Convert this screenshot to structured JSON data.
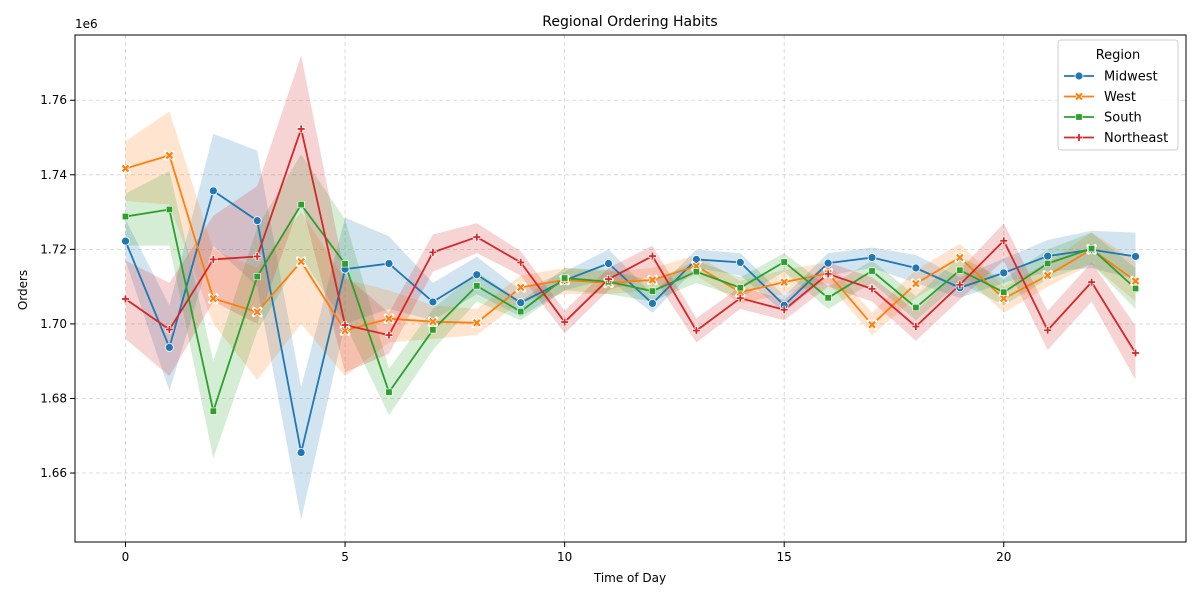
{
  "chart_data": {
    "type": "line",
    "title": "Regional Ordering Habits",
    "xlabel": "Time of Day",
    "ylabel": "Orders",
    "y_offset_label": "1e6",
    "x": [
      0,
      1,
      2,
      3,
      4,
      5,
      6,
      7,
      8,
      9,
      10,
      11,
      12,
      13,
      14,
      15,
      16,
      17,
      18,
      19,
      20,
      21,
      22,
      23
    ],
    "xlim": [
      -1.15,
      24.15
    ],
    "ylim": [
      1.6415,
      1.7775
    ],
    "x_ticks": [
      0,
      5,
      10,
      15,
      20
    ],
    "x_tick_labels": [
      "0",
      "5",
      "10",
      "15",
      "20"
    ],
    "y_ticks": [
      1.66,
      1.68,
      1.7,
      1.72,
      1.74,
      1.76
    ],
    "y_tick_labels": [
      "1.66",
      "1.68",
      "1.70",
      "1.72",
      "1.74",
      "1.76"
    ],
    "grid": true,
    "legend": {
      "title": "Region",
      "position": "top-right"
    },
    "series": [
      {
        "name": "Midwest",
        "color": "#1f77b4",
        "marker": "circle",
        "values": [
          1.7222,
          1.6937,
          1.7357,
          1.7277,
          1.6655,
          1.7147,
          1.7162,
          1.7059,
          1.7132,
          1.7057,
          1.7117,
          1.7162,
          1.7055,
          1.7173,
          1.7165,
          1.705,
          1.7163,
          1.7178,
          1.715,
          1.7097,
          1.7137,
          1.7182,
          1.7199,
          1.7181
        ],
        "ci_lower": [
          1.717,
          1.682,
          1.721,
          1.71,
          1.6475,
          1.7,
          1.704,
          1.701,
          1.708,
          1.702,
          1.709,
          1.712,
          1.703,
          1.715,
          1.713,
          1.703,
          1.713,
          1.715,
          1.711,
          1.707,
          1.711,
          1.714,
          1.715,
          1.712
        ],
        "ci_upper": [
          1.728,
          1.705,
          1.751,
          1.7465,
          1.683,
          1.7285,
          1.7235,
          1.711,
          1.718,
          1.709,
          1.714,
          1.72,
          1.708,
          1.72,
          1.719,
          1.7075,
          1.719,
          1.7205,
          1.7185,
          1.7125,
          1.7175,
          1.7225,
          1.725,
          1.7245
        ]
      },
      {
        "name": "West",
        "color": "#ff7f0e",
        "marker": "x",
        "values": [
          1.7417,
          1.7452,
          1.7068,
          1.7032,
          1.7167,
          1.6982,
          1.7014,
          1.7006,
          1.7003,
          1.7098,
          1.7118,
          1.711,
          1.7118,
          1.7155,
          1.7085,
          1.7112,
          1.7136,
          1.6998,
          1.7108,
          1.7178,
          1.7068,
          1.713,
          1.72,
          1.7115
        ],
        "ci_lower": [
          1.733,
          1.732,
          1.7,
          1.685,
          1.7,
          1.686,
          1.695,
          1.696,
          1.697,
          1.706,
          1.708,
          1.708,
          1.709,
          1.713,
          1.7055,
          1.708,
          1.711,
          1.697,
          1.707,
          1.714,
          1.703,
          1.71,
          1.716,
          1.706
        ],
        "ci_upper": [
          1.749,
          1.757,
          1.72,
          1.715,
          1.73,
          1.712,
          1.709,
          1.705,
          1.704,
          1.713,
          1.715,
          1.714,
          1.715,
          1.7185,
          1.7115,
          1.7145,
          1.7165,
          1.703,
          1.7145,
          1.7215,
          1.71,
          1.7165,
          1.7245,
          1.717
        ]
      },
      {
        "name": "South",
        "color": "#2ca02c",
        "marker": "square",
        "values": [
          1.7288,
          1.7307,
          1.6766,
          1.7127,
          1.732,
          1.7161,
          1.6817,
          1.6984,
          1.7102,
          1.7033,
          1.7123,
          1.7113,
          1.7088,
          1.714,
          1.7097,
          1.7166,
          1.707,
          1.7142,
          1.7044,
          1.7144,
          1.7085,
          1.7162,
          1.7202,
          1.7095
        ],
        "ci_lower": [
          1.721,
          1.721,
          1.664,
          1.698,
          1.718,
          1.7,
          1.6755,
          1.693,
          1.706,
          1.701,
          1.709,
          1.708,
          1.706,
          1.711,
          1.707,
          1.714,
          1.704,
          1.711,
          1.701,
          1.711,
          1.705,
          1.712,
          1.716,
          1.704
        ],
        "ci_upper": [
          1.735,
          1.741,
          1.69,
          1.726,
          1.7455,
          1.728,
          1.688,
          1.704,
          1.714,
          1.706,
          1.715,
          1.7145,
          1.7115,
          1.717,
          1.7125,
          1.719,
          1.71,
          1.717,
          1.7075,
          1.718,
          1.712,
          1.72,
          1.7245,
          1.715
        ]
      },
      {
        "name": "Northeast",
        "color": "#d62728",
        "marker": "plus",
        "values": [
          1.7067,
          1.6985,
          1.7173,
          1.7181,
          1.7523,
          1.6997,
          1.697,
          1.7192,
          1.7233,
          1.7165,
          1.7005,
          1.712,
          1.7182,
          1.6982,
          1.7069,
          1.7038,
          1.7134,
          1.7094,
          1.6993,
          1.7105,
          1.7223,
          1.6983,
          1.7112,
          1.6922
        ],
        "ci_lower": [
          1.696,
          1.686,
          1.706,
          1.7,
          1.733,
          1.687,
          1.692,
          1.714,
          1.719,
          1.713,
          1.6975,
          1.709,
          1.713,
          1.695,
          1.704,
          1.701,
          1.71,
          1.706,
          1.6955,
          1.7065,
          1.717,
          1.693,
          1.706,
          1.685
        ],
        "ci_upper": [
          1.717,
          1.711,
          1.729,
          1.737,
          1.772,
          1.713,
          1.703,
          1.724,
          1.727,
          1.7195,
          1.7035,
          1.715,
          1.721,
          1.7015,
          1.71,
          1.7065,
          1.7165,
          1.7125,
          1.7035,
          1.7145,
          1.727,
          1.7035,
          1.7165,
          1.6995
        ]
      }
    ]
  }
}
